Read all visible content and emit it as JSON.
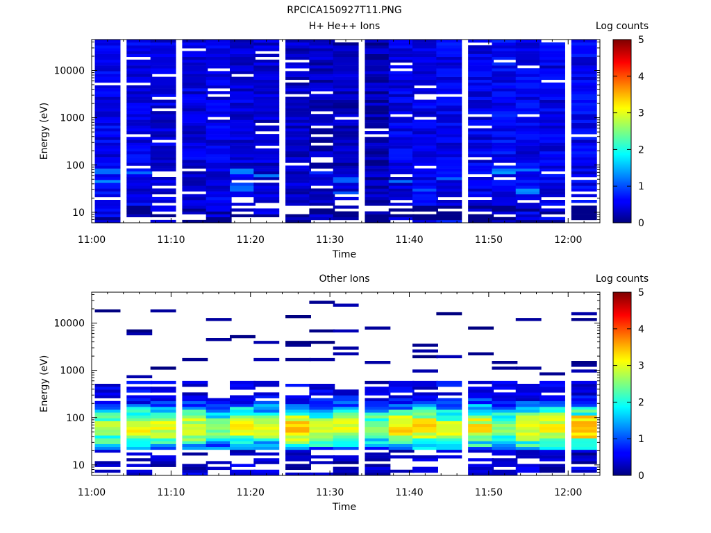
{
  "figure_title": "RPCICA150927T11.PNG",
  "chart_data": [
    {
      "type": "heatmap",
      "title": "H+ He++ Ions",
      "xlabel": "Time",
      "ylabel": "Energy (eV)",
      "colorbar_label": "Log counts",
      "y_scale": "log",
      "y_range": [
        6,
        45000
      ],
      "x_range": [
        "11:00",
        "12:04"
      ],
      "x_ticks": [
        "11:00",
        "11:10",
        "11:20",
        "11:30",
        "11:40",
        "11:50",
        "12:00"
      ],
      "y_ticks": [
        "10",
        "100",
        "1000",
        "10000"
      ],
      "colorbar_ticks": [
        "0",
        "1",
        "2",
        "3",
        "4",
        "5"
      ],
      "colorbar_range": [
        0,
        5
      ],
      "time_bins": [
        "11:02",
        "11:06",
        "11:09",
        "11:13",
        "11:16",
        "11:19",
        "11:22",
        "11:26",
        "11:29",
        "11:32",
        "11:36",
        "11:39",
        "11:42",
        "11:45",
        "11:49",
        "11:52",
        "11:55",
        "11:58",
        "12:02"
      ],
      "mean_log_counts": [
        0.55,
        0.5,
        0.45,
        0.45,
        0.5,
        0.45,
        0.4,
        0.35,
        0.3,
        0.3,
        0.25,
        0.5,
        0.5,
        0.55,
        0.5,
        0.6,
        0.55,
        0.5,
        0.55
      ]
    },
    {
      "type": "heatmap",
      "title": "Other Ions",
      "xlabel": "Time",
      "ylabel": "Energy (eV)",
      "colorbar_label": "Log counts",
      "y_scale": "log",
      "y_range": [
        6,
        45000
      ],
      "x_range": [
        "11:00",
        "12:04"
      ],
      "x_ticks": [
        "11:00",
        "11:10",
        "11:20",
        "11:30",
        "11:40",
        "11:50",
        "12:00"
      ],
      "y_ticks": [
        "10",
        "100",
        "1000",
        "10000"
      ],
      "colorbar_ticks": [
        "0",
        "1",
        "2",
        "3",
        "4",
        "5"
      ],
      "colorbar_range": [
        0,
        5
      ],
      "time_bins": [
        "11:02",
        "11:06",
        "11:09",
        "11:13",
        "11:16",
        "11:19",
        "11:22",
        "11:26",
        "11:29",
        "11:32",
        "11:36",
        "11:39",
        "11:42",
        "11:45",
        "11:49",
        "11:52",
        "11:55",
        "11:58",
        "12:02"
      ],
      "peak_log_counts": [
        3.0,
        3.2,
        3.1,
        3.0,
        2.6,
        3.2,
        3.0,
        3.7,
        3.0,
        3.1,
        2.7,
        3.3,
        3.4,
        3.0,
        3.3,
        2.6,
        3.2,
        3.4,
        3.6
      ],
      "peak_energy_eV": 60
    }
  ]
}
